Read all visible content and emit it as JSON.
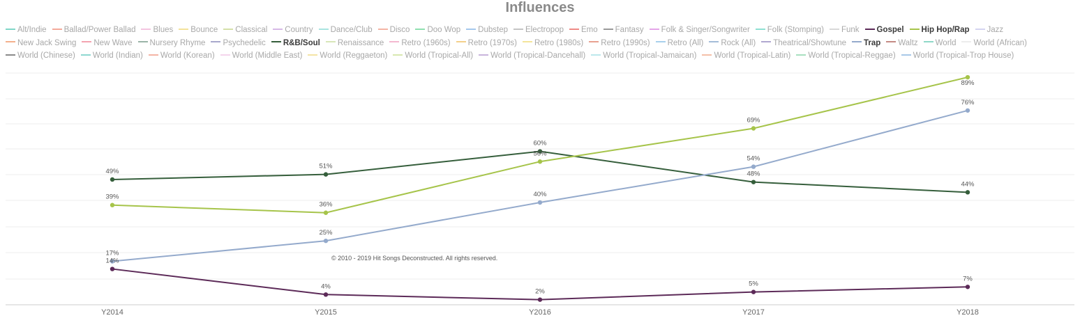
{
  "colors": {
    "title": "#8a8a8a",
    "grid": "#ececec",
    "axis": "#cccccc"
  },
  "chart_data": {
    "type": "line",
    "title": "Influences",
    "xlabel": "",
    "ylabel": "",
    "categories": [
      "Y2014",
      "Y2015",
      "Y2016",
      "Y2017",
      "Y2018"
    ],
    "ylim": [
      0,
      92
    ],
    "grid": true,
    "legend_position": "top",
    "legend": [
      {
        "name": "Alt/Indie",
        "color": "#7fd6c8",
        "active": false
      },
      {
        "name": "Ballad/Power Ballad",
        "color": "#f4a99a",
        "active": false
      },
      {
        "name": "Blues",
        "color": "#f3c4e0",
        "active": false
      },
      {
        "name": "Bounce",
        "color": "#f3e29a",
        "active": false
      },
      {
        "name": "Classical",
        "color": "#d4e0a8",
        "active": false
      },
      {
        "name": "Country",
        "color": "#d6b8e6",
        "active": false
      },
      {
        "name": "Dance/Club",
        "color": "#a8e4e0",
        "active": false
      },
      {
        "name": "Disco",
        "color": "#f4b4a4",
        "active": false
      },
      {
        "name": "Doo Wop",
        "color": "#8fe0b0",
        "active": false
      },
      {
        "name": "Dubstep",
        "color": "#a4c8ec",
        "active": false
      },
      {
        "name": "Electropop",
        "color": "#c4c4c4",
        "active": false
      },
      {
        "name": "Emo",
        "color": "#ee8a86",
        "active": false
      },
      {
        "name": "Fantasy",
        "color": "#9a9a9a",
        "active": false
      },
      {
        "name": "Folk & Singer/Songwriter",
        "color": "#e4a4e8",
        "active": false
      },
      {
        "name": "Folk (Stomping)",
        "color": "#8ee0d2",
        "active": false
      },
      {
        "name": "Funk",
        "color": "#d8d8d8",
        "active": false
      },
      {
        "name": "Gospel",
        "color": "#5c2a58",
        "active": true
      },
      {
        "name": "Hip Hop/Rap",
        "color": "#a6c44a",
        "active": true
      },
      {
        "name": "Jazz",
        "color": "#d4d4f0",
        "active": false
      },
      {
        "name": "New Jack Swing",
        "color": "#f4b08c",
        "active": false
      },
      {
        "name": "New Wave",
        "color": "#f4a4b0",
        "active": false
      },
      {
        "name": "Nursery Rhyme",
        "color": "#9ab4a8",
        "active": false
      },
      {
        "name": "Psychedelic",
        "color": "#a8a8cc",
        "active": false
      },
      {
        "name": "R&B/Soul",
        "color": "#355e3b",
        "active": true
      },
      {
        "name": "Renaissance",
        "color": "#d8e6b8",
        "active": false
      },
      {
        "name": "Retro (1960s)",
        "color": "#f4b8d0",
        "active": false
      },
      {
        "name": "Retro (1970s)",
        "color": "#f4d08a",
        "active": false
      },
      {
        "name": "Retro (1980s)",
        "color": "#f4e49a",
        "active": false
      },
      {
        "name": "Retro (1990s)",
        "color": "#e8a090",
        "active": false
      },
      {
        "name": "Retro (All)",
        "color": "#a8d0ec",
        "active": false
      },
      {
        "name": "Rock (All)",
        "color": "#a4bcd8",
        "active": false
      },
      {
        "name": "Theatrical/Showtune",
        "color": "#b0a8d0",
        "active": false
      },
      {
        "name": "Trap",
        "color": "#94aacc",
        "active": true
      },
      {
        "name": "Waltz",
        "color": "#c48a84",
        "active": false
      },
      {
        "name": "World",
        "color": "#8ed8c8",
        "active": false
      },
      {
        "name": "World (African)",
        "color": "#ececec",
        "active": false
      },
      {
        "name": "World (Chinese)",
        "color": "#8a8a8a",
        "active": false
      },
      {
        "name": "World (Indian)",
        "color": "#8ed8d0",
        "active": false
      },
      {
        "name": "World (Korean)",
        "color": "#f4b4a4",
        "active": false
      },
      {
        "name": "World (Middle East)",
        "color": "#f4d4ec",
        "active": false
      },
      {
        "name": "World (Reggaeton)",
        "color": "#f4e4a4",
        "active": false
      },
      {
        "name": "World (Tropical-All)",
        "color": "#d8e8b0",
        "active": false
      },
      {
        "name": "World (Tropical-Dancehall)",
        "color": "#c8b4dc",
        "active": false
      },
      {
        "name": "World (Tropical-Jamaican)",
        "color": "#bce8ec",
        "active": false
      },
      {
        "name": "World (Tropical-Latin)",
        "color": "#f4c0a8",
        "active": false
      },
      {
        "name": "World (Tropical-Reggae)",
        "color": "#a8e0c0",
        "active": false
      },
      {
        "name": "World (Tropical-Trop House)",
        "color": "#a8c8e8",
        "active": false
      }
    ],
    "series": [
      {
        "name": "R&B/Soul",
        "color": "#355e3b",
        "values": [
          49,
          51,
          60,
          48,
          44
        ],
        "labels": [
          "49%",
          "51%",
          "60%",
          "48%",
          "44%"
        ]
      },
      {
        "name": "Hip Hop/Rap",
        "color": "#a6c44a",
        "values": [
          39,
          36,
          56,
          69,
          89
        ],
        "labels": [
          "39%",
          "36%",
          "56%",
          "69%",
          "89%"
        ]
      },
      {
        "name": "Trap",
        "color": "#94aacc",
        "values": [
          17,
          25,
          40,
          54,
          76
        ],
        "labels": [
          "17%",
          "25%",
          "40%",
          "54%",
          "76%"
        ]
      },
      {
        "name": "Gospel",
        "color": "#5c2a58",
        "values": [
          14,
          4,
          2,
          5,
          7
        ],
        "labels": [
          "14%",
          "4%",
          "2%",
          "5%",
          "7%"
        ]
      }
    ],
    "annotation": "© 2010 - 2019 Hit Songs Deconstructed. All rights reserved."
  }
}
